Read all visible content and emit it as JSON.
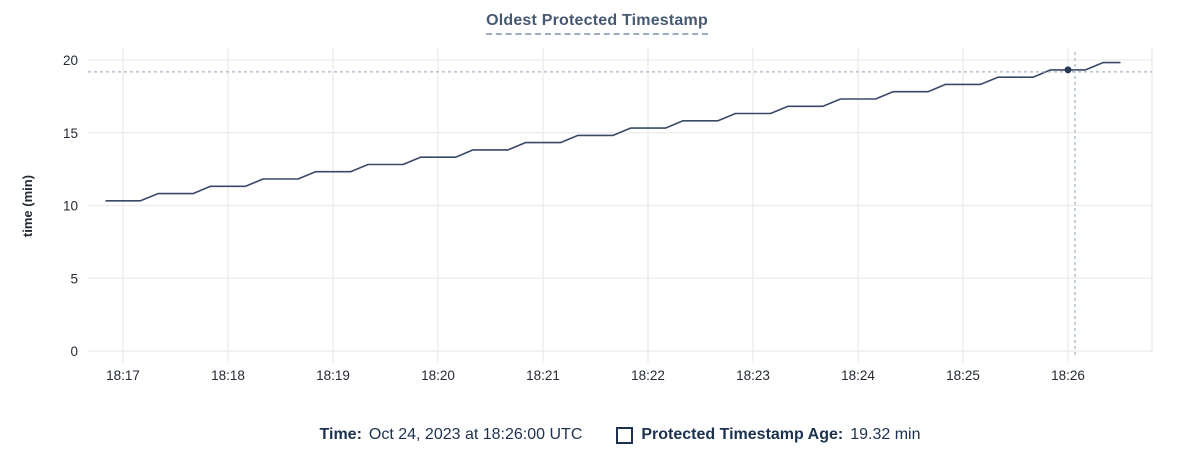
{
  "title": {
    "text": "Oldest Protected Timestamp"
  },
  "legend": {
    "time_label": "Time:",
    "time_value": "Oct 24, 2023 at 18:26:00 UTC",
    "series_label": "Protected Timestamp Age:",
    "series_value": "19.32 min",
    "series_swatch": "empty-square-outline"
  },
  "colors": {
    "line": "#394a68",
    "hover_dot": "#2c3a55",
    "crosshair": "#a3b4c6",
    "grid": "#ececec",
    "tick_text": "#242a35",
    "title_text": "#475872",
    "legend_text": "#1c3150"
  },
  "chart_data": {
    "type": "line",
    "title": "Oldest Protected Timestamp",
    "xlabel": "",
    "ylabel": "time (min)",
    "ylim": [
      0,
      20
    ],
    "grid": true,
    "legend_position": "bottom",
    "y_ticks": [
      0,
      5,
      10,
      15,
      20
    ],
    "x_ticks": [
      "18:17",
      "18:18",
      "18:19",
      "18:20",
      "18:21",
      "18:22",
      "18:23",
      "18:24",
      "18:25",
      "18:26"
    ],
    "x_start": "18:16:50",
    "x_end": "18:26:30",
    "sample_interval_sec": 10,
    "samples_per_tick": 6,
    "series": [
      {
        "name": "Protected Timestamp Age",
        "unit": "min",
        "values": [
          10.32,
          10.32,
          10.32,
          10.82,
          10.82,
          10.82,
          11.32,
          11.32,
          11.32,
          11.82,
          11.82,
          11.82,
          12.32,
          12.32,
          12.32,
          12.82,
          12.82,
          12.82,
          13.32,
          13.32,
          13.32,
          13.82,
          13.82,
          13.82,
          14.32,
          14.32,
          14.32,
          14.82,
          14.82,
          14.82,
          15.32,
          15.32,
          15.32,
          15.82,
          15.82,
          15.82,
          16.32,
          16.32,
          16.32,
          16.82,
          16.82,
          16.82,
          17.32,
          17.32,
          17.32,
          17.82,
          17.82,
          17.82,
          18.32,
          18.32,
          18.32,
          18.82,
          18.82,
          18.82,
          19.32,
          19.32,
          19.32,
          19.82,
          19.82
        ]
      }
    ],
    "hover": {
      "time": "18:26:00",
      "date": "Oct 24, 2023",
      "tz": "UTC",
      "sample_index": 55,
      "value_min": 19.32
    }
  }
}
